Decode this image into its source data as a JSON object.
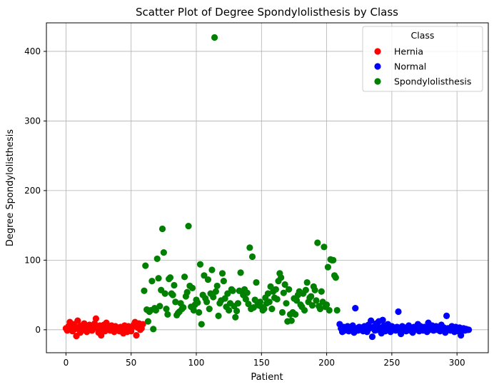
{
  "chart_data": {
    "type": "scatter",
    "title": "Scatter Plot of Degree Spondylolisthesis by Class",
    "xlabel": "Patient",
    "ylabel": "Degree Spondylolisthesis",
    "xlim": [
      -15,
      324
    ],
    "ylim": [
      -33,
      441
    ],
    "xticks": [
      0,
      50,
      100,
      150,
      200,
      250,
      300
    ],
    "yticks": [
      0,
      100,
      200,
      300,
      400
    ],
    "grid": true,
    "legend": {
      "title": "Class",
      "position": "top-right"
    },
    "series": [
      {
        "name": "Hernia",
        "color": "#ff0000",
        "points": [
          [
            0,
            2
          ],
          [
            1,
            -1
          ],
          [
            2,
            5
          ],
          [
            3,
            11
          ],
          [
            4,
            3
          ],
          [
            5,
            -2
          ],
          [
            6,
            8
          ],
          [
            7,
            1
          ],
          [
            8,
            -9
          ],
          [
            9,
            13
          ],
          [
            10,
            4
          ],
          [
            11,
            -4
          ],
          [
            12,
            6
          ],
          [
            13,
            0
          ],
          [
            14,
            9
          ],
          [
            15,
            2
          ],
          [
            16,
            -3
          ],
          [
            17,
            5
          ],
          [
            18,
            7
          ],
          [
            19,
            0
          ],
          [
            20,
            -1
          ],
          [
            21,
            3
          ],
          [
            22,
            9
          ],
          [
            23,
            16
          ],
          [
            24,
            2
          ],
          [
            25,
            -4
          ],
          [
            26,
            6
          ],
          [
            27,
            -8
          ],
          [
            28,
            1
          ],
          [
            29,
            7
          ],
          [
            30,
            -2
          ],
          [
            31,
            10
          ],
          [
            32,
            4
          ],
          [
            33,
            0
          ],
          [
            34,
            -1
          ],
          [
            35,
            6
          ],
          [
            36,
            2
          ],
          [
            37,
            -3
          ],
          [
            38,
            5
          ],
          [
            39,
            1
          ],
          [
            40,
            3
          ],
          [
            41,
            -2
          ],
          [
            42,
            4
          ],
          [
            43,
            0
          ],
          [
            44,
            -5
          ],
          [
            45,
            6
          ],
          [
            46,
            2
          ],
          [
            47,
            -3
          ],
          [
            48,
            5
          ],
          [
            49,
            1
          ],
          [
            50,
            -2
          ],
          [
            51,
            4
          ],
          [
            52,
            7
          ],
          [
            53,
            11
          ],
          [
            54,
            -8
          ],
          [
            55,
            3
          ],
          [
            56,
            9
          ],
          [
            57,
            0
          ],
          [
            58,
            2
          ],
          [
            59,
            8
          ]
        ]
      },
      {
        "name": "Normal",
        "color": "#0000ff",
        "points": [
          [
            210,
            8
          ],
          [
            211,
            2
          ],
          [
            212,
            -3
          ],
          [
            213,
            4
          ],
          [
            214,
            -1
          ],
          [
            215,
            1
          ],
          [
            216,
            5
          ],
          [
            217,
            -2
          ],
          [
            218,
            3
          ],
          [
            219,
            0
          ],
          [
            220,
            6
          ],
          [
            221,
            -4
          ],
          [
            222,
            31
          ],
          [
            223,
            2
          ],
          [
            224,
            -1
          ],
          [
            225,
            4
          ],
          [
            226,
            0
          ],
          [
            227,
            3
          ],
          [
            228,
            -2
          ],
          [
            229,
            5
          ],
          [
            230,
            1
          ],
          [
            231,
            -3
          ],
          [
            232,
            7
          ],
          [
            233,
            2
          ],
          [
            234,
            13
          ],
          [
            235,
            -10
          ],
          [
            236,
            4
          ],
          [
            237,
            -1
          ],
          [
            238,
            9
          ],
          [
            239,
            0
          ],
          [
            240,
            12
          ],
          [
            241,
            3
          ],
          [
            242,
            -5
          ],
          [
            243,
            14
          ],
          [
            244,
            6
          ],
          [
            245,
            -2
          ],
          [
            246,
            2
          ],
          [
            247,
            8
          ],
          [
            248,
            0
          ],
          [
            249,
            -3
          ],
          [
            250,
            5
          ],
          [
            251,
            1
          ],
          [
            252,
            3
          ],
          [
            253,
            -1
          ],
          [
            254,
            4
          ],
          [
            255,
            26
          ],
          [
            256,
            2
          ],
          [
            257,
            -6
          ],
          [
            258,
            5
          ],
          [
            259,
            0
          ],
          [
            260,
            3
          ],
          [
            261,
            -2
          ],
          [
            262,
            1
          ],
          [
            263,
            6
          ],
          [
            264,
            -1
          ],
          [
            265,
            2
          ],
          [
            266,
            -4
          ],
          [
            267,
            4
          ],
          [
            268,
            0
          ],
          [
            269,
            3
          ],
          [
            270,
            8
          ],
          [
            271,
            -2
          ],
          [
            272,
            5
          ],
          [
            273,
            1
          ],
          [
            274,
            -1
          ],
          [
            275,
            4
          ],
          [
            276,
            2
          ],
          [
            277,
            -3
          ],
          [
            278,
            10
          ],
          [
            279,
            0
          ],
          [
            280,
            3
          ],
          [
            281,
            6
          ],
          [
            282,
            -1
          ],
          [
            283,
            2
          ],
          [
            284,
            5
          ],
          [
            285,
            0
          ],
          [
            286,
            4
          ],
          [
            287,
            -2
          ],
          [
            288,
            7
          ],
          [
            289,
            1
          ],
          [
            290,
            3
          ],
          [
            291,
            -4
          ],
          [
            292,
            20
          ],
          [
            293,
            2
          ],
          [
            294,
            0
          ],
          [
            295,
            -1
          ],
          [
            296,
            5
          ],
          [
            297,
            2
          ],
          [
            298,
            -3
          ],
          [
            299,
            4
          ],
          [
            300,
            1
          ],
          [
            301,
            -2
          ],
          [
            302,
            3
          ],
          [
            303,
            -8
          ],
          [
            304,
            0
          ],
          [
            305,
            2
          ],
          [
            306,
            -1
          ],
          [
            307,
            1
          ],
          [
            308,
            0
          ],
          [
            309,
            0
          ]
        ]
      },
      {
        "name": "Spondylolisthesis",
        "color": "#008000",
        "points": [
          [
            60,
            56
          ],
          [
            61,
            92
          ],
          [
            62,
            29
          ],
          [
            63,
            12
          ],
          [
            64,
            26
          ],
          [
            65,
            28
          ],
          [
            66,
            70
          ],
          [
            67,
            1
          ],
          [
            68,
            31
          ],
          [
            69,
            28
          ],
          [
            70,
            102
          ],
          [
            71,
            74
          ],
          [
            72,
            34
          ],
          [
            73,
            57
          ],
          [
            74,
            145
          ],
          [
            75,
            111
          ],
          [
            76,
            52
          ],
          [
            77,
            30
          ],
          [
            78,
            22
          ],
          [
            79,
            73
          ],
          [
            80,
            75
          ],
          [
            81,
            52
          ],
          [
            82,
            50
          ],
          [
            83,
            64
          ],
          [
            84,
            40
          ],
          [
            85,
            21
          ],
          [
            86,
            24
          ],
          [
            87,
            26
          ],
          [
            88,
            38
          ],
          [
            89,
            30
          ],
          [
            90,
            32
          ],
          [
            91,
            76
          ],
          [
            92,
            48
          ],
          [
            93,
            54
          ],
          [
            94,
            149
          ],
          [
            95,
            63
          ],
          [
            96,
            33
          ],
          [
            97,
            60
          ],
          [
            98,
            28
          ],
          [
            99,
            36
          ],
          [
            100,
            43
          ],
          [
            101,
            39
          ],
          [
            102,
            25
          ],
          [
            103,
            94
          ],
          [
            104,
            8
          ],
          [
            105,
            50
          ],
          [
            106,
            78
          ],
          [
            107,
            45
          ],
          [
            108,
            40
          ],
          [
            109,
            72
          ],
          [
            110,
            30
          ],
          [
            111,
            52
          ],
          [
            112,
            86
          ],
          [
            113,
            47
          ],
          [
            114,
            420
          ],
          [
            115,
            55
          ],
          [
            116,
            63
          ],
          [
            117,
            20
          ],
          [
            118,
            38
          ],
          [
            119,
            42
          ],
          [
            120,
            81
          ],
          [
            121,
            70
          ],
          [
            122,
            45
          ],
          [
            123,
            33
          ],
          [
            124,
            52
          ],
          [
            125,
            28
          ],
          [
            126,
            38
          ],
          [
            127,
            58
          ],
          [
            128,
            56
          ],
          [
            129,
            34
          ],
          [
            130,
            18
          ],
          [
            131,
            27
          ],
          [
            132,
            38
          ],
          [
            133,
            56
          ],
          [
            134,
            82
          ],
          [
            135,
            55
          ],
          [
            136,
            50
          ],
          [
            137,
            58
          ],
          [
            138,
            44
          ],
          [
            139,
            53
          ],
          [
            140,
            37
          ],
          [
            141,
            118
          ],
          [
            142,
            30
          ],
          [
            143,
            105
          ],
          [
            144,
            32
          ],
          [
            145,
            43
          ],
          [
            146,
            68
          ],
          [
            147,
            39
          ],
          [
            148,
            35
          ],
          [
            149,
            40
          ],
          [
            150,
            33
          ],
          [
            151,
            28
          ],
          [
            152,
            30
          ],
          [
            153,
            46
          ],
          [
            154,
            38
          ],
          [
            155,
            52
          ],
          [
            156,
            40
          ],
          [
            157,
            62
          ],
          [
            158,
            30
          ],
          [
            159,
            55
          ],
          [
            160,
            46
          ],
          [
            161,
            58
          ],
          [
            162,
            44
          ],
          [
            163,
            70
          ],
          [
            164,
            81
          ],
          [
            165,
            75
          ],
          [
            166,
            25
          ],
          [
            167,
            53
          ],
          [
            168,
            65
          ],
          [
            169,
            38
          ],
          [
            170,
            12
          ],
          [
            171,
            58
          ],
          [
            172,
            22
          ],
          [
            173,
            13
          ],
          [
            174,
            25
          ],
          [
            175,
            45
          ],
          [
            176,
            22
          ],
          [
            177,
            42
          ],
          [
            178,
            50
          ],
          [
            179,
            55
          ],
          [
            180,
            36
          ],
          [
            181,
            33
          ],
          [
            182,
            52
          ],
          [
            183,
            28
          ],
          [
            184,
            57
          ],
          [
            185,
            68
          ],
          [
            186,
            40
          ],
          [
            187,
            46
          ],
          [
            188,
            48
          ],
          [
            189,
            35
          ],
          [
            190,
            62
          ],
          [
            191,
            57
          ],
          [
            192,
            42
          ],
          [
            193,
            125
          ],
          [
            194,
            34
          ],
          [
            195,
            30
          ],
          [
            196,
            55
          ],
          [
            197,
            40
          ],
          [
            198,
            119
          ],
          [
            199,
            33
          ],
          [
            200,
            36
          ],
          [
            201,
            90
          ],
          [
            202,
            28
          ],
          [
            203,
            101
          ],
          [
            204,
            100
          ],
          [
            205,
            100
          ],
          [
            206,
            78
          ],
          [
            207,
            75
          ],
          [
            208,
            28
          ]
        ]
      }
    ]
  }
}
